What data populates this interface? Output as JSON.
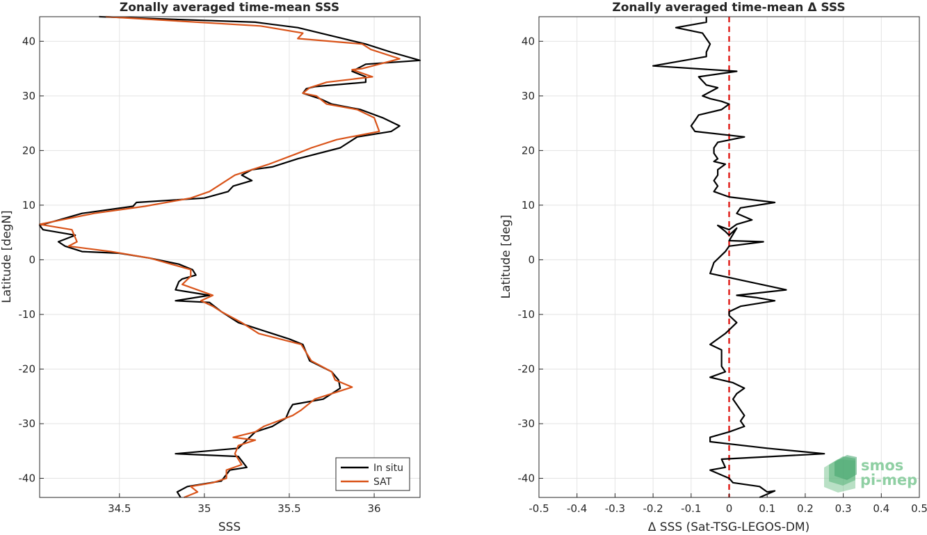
{
  "chart_data": [
    {
      "type": "line",
      "title": "Zonally averaged time-mean SSS",
      "xlabel": "SSS",
      "ylabel": "Latitude [degN]",
      "xlim": [
        34.03,
        36.27
      ],
      "ylim": [
        -43.5,
        44.5
      ],
      "xticks": [
        34.5,
        35,
        35.5,
        36
      ],
      "xtick_labels": [
        "34.5",
        "35",
        "35.5",
        "36"
      ],
      "yticks": [
        -40,
        -30,
        -20,
        -10,
        0,
        10,
        20,
        30,
        40
      ],
      "ytick_labels": [
        "-40",
        "-30",
        "-20",
        "-10",
        "0",
        "10",
        "20",
        "30",
        "40"
      ],
      "grid": true,
      "legend_position": "bottom-right",
      "series": [
        {
          "name": "In situ",
          "color": "#000000",
          "points": [
            [
              34.38,
              44.5
            ],
            [
              35.3,
              43.5
            ],
            [
              35.55,
              42.5
            ],
            [
              35.95,
              39.5
            ],
            [
              36.1,
              38
            ],
            [
              36.27,
              36.5
            ],
            [
              35.95,
              35.8
            ],
            [
              35.87,
              34.5
            ],
            [
              35.95,
              33.5
            ],
            [
              35.95,
              32.5
            ],
            [
              35.65,
              31.7
            ],
            [
              35.6,
              31.3
            ],
            [
              35.58,
              30.5
            ],
            [
              35.68,
              29.5
            ],
            [
              35.75,
              28.5
            ],
            [
              35.92,
              27.5
            ],
            [
              36.05,
              26
            ],
            [
              36.15,
              24.5
            ],
            [
              36.1,
              23.5
            ],
            [
              35.9,
              22.5
            ],
            [
              35.8,
              20.5
            ],
            [
              35.55,
              18.5
            ],
            [
              35.4,
              17
            ],
            [
              35.28,
              16.5
            ],
            [
              35.22,
              15.5
            ],
            [
              35.28,
              14.5
            ],
            [
              35.17,
              13.5
            ],
            [
              35.14,
              12.5
            ],
            [
              35,
              11.3
            ],
            [
              34.6,
              10.5
            ],
            [
              34.58,
              9.8
            ],
            [
              34.28,
              8.5
            ],
            [
              34.03,
              6.3
            ],
            [
              34.05,
              5.5
            ],
            [
              34.24,
              4.5
            ],
            [
              34.14,
              3.3
            ],
            [
              34.18,
              2.5
            ],
            [
              34.28,
              1.5
            ],
            [
              34.5,
              1.2
            ],
            [
              34.68,
              0.3
            ],
            [
              34.85,
              -0.8
            ],
            [
              34.93,
              -1.8
            ],
            [
              34.95,
              -2.8
            ],
            [
              34.87,
              -3.5
            ],
            [
              34.85,
              -4
            ],
            [
              34.83,
              -5.5
            ],
            [
              35.03,
              -6.5
            ],
            [
              34.83,
              -7.5
            ],
            [
              35.03,
              -7.8
            ],
            [
              35.1,
              -9.5
            ],
            [
              35.2,
              -11.5
            ],
            [
              35.3,
              -12.5
            ],
            [
              35.5,
              -14.5
            ],
            [
              35.58,
              -15.5
            ],
            [
              35.6,
              -17
            ],
            [
              35.62,
              -18.5
            ],
            [
              35.75,
              -20.5
            ],
            [
              35.79,
              -22
            ],
            [
              35.8,
              -23.5
            ],
            [
              35.7,
              -25.5
            ],
            [
              35.52,
              -26.5
            ],
            [
              35.5,
              -27.5
            ],
            [
              35.48,
              -29
            ],
            [
              35.4,
              -30.5
            ],
            [
              35.3,
              -31.5
            ],
            [
              35.25,
              -33
            ],
            [
              35.2,
              -34.5
            ],
            [
              34.83,
              -35.5
            ],
            [
              35.2,
              -36
            ],
            [
              35.25,
              -38
            ],
            [
              35.15,
              -38.5
            ],
            [
              35.1,
              -40.5
            ],
            [
              34.9,
              -41.5
            ],
            [
              34.84,
              -42.5
            ],
            [
              34.86,
              -43.5
            ]
          ]
        },
        {
          "name": "SAT",
          "color": "#d95319",
          "points": [
            [
              34.42,
              44.5
            ],
            [
              35.33,
              42.8
            ],
            [
              35.58,
              41.5
            ],
            [
              35.55,
              40.5
            ],
            [
              35.93,
              39.5
            ],
            [
              35.98,
              38.5
            ],
            [
              36.15,
              36.8
            ],
            [
              35.93,
              35
            ],
            [
              35.87,
              34.8
            ],
            [
              35.99,
              33.5
            ],
            [
              35.72,
              32.5
            ],
            [
              35.62,
              31.5
            ],
            [
              35.58,
              30.5
            ],
            [
              35.66,
              30
            ],
            [
              35.72,
              28.5
            ],
            [
              35.9,
              27.5
            ],
            [
              36,
              26
            ],
            [
              36.03,
              23.5
            ],
            [
              35.78,
              22
            ],
            [
              35.63,
              20.5
            ],
            [
              35.55,
              19.5
            ],
            [
              35.38,
              17.5
            ],
            [
              35.18,
              15.5
            ],
            [
              35.08,
              13.5
            ],
            [
              35.03,
              12.5
            ],
            [
              34.92,
              11.3
            ],
            [
              34.65,
              9.8
            ],
            [
              34.35,
              8.5
            ],
            [
              34.03,
              6.5
            ],
            [
              34.22,
              5.5
            ],
            [
              34.25,
              3.3
            ],
            [
              34.2,
              2.5
            ],
            [
              34.45,
              1.5
            ],
            [
              34.68,
              0.3
            ],
            [
              34.92,
              -1.8
            ],
            [
              34.92,
              -3
            ],
            [
              34.87,
              -4.5
            ],
            [
              35.05,
              -6.5
            ],
            [
              34.98,
              -7.5
            ],
            [
              35.05,
              -8.5
            ],
            [
              35.1,
              -9.5
            ],
            [
              35.22,
              -11.5
            ],
            [
              35.32,
              -13.5
            ],
            [
              35.57,
              -15.5
            ],
            [
              35.63,
              -18.5
            ],
            [
              35.75,
              -20.5
            ],
            [
              35.77,
              -22
            ],
            [
              35.87,
              -23.3
            ],
            [
              35.65,
              -25.5
            ],
            [
              35.57,
              -27.5
            ],
            [
              35.52,
              -28.5
            ],
            [
              35.35,
              -30.5
            ],
            [
              35.3,
              -31.5
            ],
            [
              35.17,
              -32.5
            ],
            [
              35.3,
              -33
            ],
            [
              35.2,
              -34
            ],
            [
              35.18,
              -35.5
            ],
            [
              35.22,
              -37.5
            ],
            [
              35.13,
              -38.5
            ],
            [
              35.13,
              -40
            ],
            [
              35.05,
              -40.8
            ],
            [
              34.92,
              -41.5
            ],
            [
              34.96,
              -42.5
            ],
            [
              34.88,
              -43.5
            ]
          ]
        }
      ]
    },
    {
      "type": "line",
      "title": "Zonally averaged time-mean Δ SSS",
      "xlabel": "Δ SSS (Sat-TSG-LEGOS-DM)",
      "ylabel": "Latitude [deg]",
      "xlim": [
        -0.5,
        0.5
      ],
      "ylim": [
        -43.5,
        44.5
      ],
      "xticks": [
        -0.5,
        -0.4,
        -0.3,
        -0.2,
        -0.1,
        0,
        0.1,
        0.2,
        0.3,
        0.4,
        0.5
      ],
      "xtick_labels": [
        "-0.5",
        "-0.4",
        "-0.3",
        "-0.2",
        "-0.1",
        "0",
        "0.1",
        "0.2",
        "0.3",
        "0.4",
        "0.5"
      ],
      "yticks": [
        -40,
        -30,
        -20,
        -10,
        0,
        10,
        20,
        30,
        40
      ],
      "ytick_labels": [
        "-40",
        "-30",
        "-20",
        "-10",
        "0",
        "10",
        "20",
        "30",
        "40"
      ],
      "grid": true,
      "reference_line": {
        "x": 0,
        "color": "#e0201c",
        "style": "dashed"
      },
      "series": [
        {
          "color": "#000000",
          "points": [
            [
              -0.06,
              44.5
            ],
            [
              -0.06,
              43.5
            ],
            [
              -0.14,
              42.5
            ],
            [
              -0.07,
              41.5
            ],
            [
              -0.05,
              39.5
            ],
            [
              -0.06,
              38
            ],
            [
              -0.06,
              37.2
            ],
            [
              -0.2,
              35.5
            ],
            [
              0.02,
              34.5
            ],
            [
              -0.08,
              33.5
            ],
            [
              -0.06,
              32
            ],
            [
              -0.03,
              31.5
            ],
            [
              -0.07,
              30
            ],
            [
              -0.05,
              29.5
            ],
            [
              -0.02,
              29
            ],
            [
              0,
              28.5
            ],
            [
              -0.02,
              27.5
            ],
            [
              -0.08,
              26.5
            ],
            [
              -0.09,
              25.5
            ],
            [
              -0.1,
              24.5
            ],
            [
              -0.09,
              23.5
            ],
            [
              0.04,
              22.5
            ],
            [
              -0.03,
              21.5
            ],
            [
              -0.04,
              20.5
            ],
            [
              -0.04,
              19.5
            ],
            [
              -0.03,
              18.5
            ],
            [
              -0.04,
              18
            ],
            [
              -0.01,
              17.5
            ],
            [
              -0.03,
              16.5
            ],
            [
              -0.03,
              15.5
            ],
            [
              -0.04,
              14.5
            ],
            [
              -0.03,
              13.5
            ],
            [
              -0.04,
              12.5
            ],
            [
              0,
              11.5
            ],
            [
              0.12,
              10.5
            ],
            [
              0.03,
              9.5
            ],
            [
              0.02,
              8.5
            ],
            [
              0.06,
              7.3
            ],
            [
              0.02,
              6.5
            ],
            [
              0,
              5.5
            ],
            [
              -0.03,
              6.3
            ],
            [
              -0.01,
              5.2
            ],
            [
              0,
              4.5
            ],
            [
              0.02,
              5.8
            ],
            [
              0,
              3.5
            ],
            [
              0.09,
              3.3
            ],
            [
              0,
              2.5
            ],
            [
              -0.01,
              1.5
            ],
            [
              -0.04,
              -0.5
            ],
            [
              -0.05,
              -2.5
            ],
            [
              0.15,
              -5.5
            ],
            [
              0.02,
              -6.5
            ],
            [
              0.07,
              -6.9
            ],
            [
              0.12,
              -7.5
            ],
            [
              0.03,
              -8.5
            ],
            [
              0,
              -9.5
            ],
            [
              0,
              -10.2
            ],
            [
              0.02,
              -11.5
            ],
            [
              -0.01,
              -13.5
            ],
            [
              -0.05,
              -15.5
            ],
            [
              -0.02,
              -16.5
            ],
            [
              -0.02,
              -19.5
            ],
            [
              -0.01,
              -20.5
            ],
            [
              -0.05,
              -21.5
            ],
            [
              0.01,
              -22.5
            ],
            [
              0.04,
              -23.5
            ],
            [
              0.02,
              -24.5
            ],
            [
              0.01,
              -25.5
            ],
            [
              0.02,
              -26.5
            ],
            [
              0.03,
              -27.5
            ],
            [
              0.04,
              -28.5
            ],
            [
              0.03,
              -29.5
            ],
            [
              0.04,
              -30.5
            ],
            [
              0,
              -31.5
            ],
            [
              -0.05,
              -32.5
            ],
            [
              -0.05,
              -33.3
            ],
            [
              0.1,
              -34.5
            ],
            [
              0.25,
              -35.5
            ],
            [
              -0.02,
              -36.5
            ],
            [
              -0.01,
              -38
            ],
            [
              -0.05,
              -38.5
            ],
            [
              0,
              -40
            ],
            [
              0.01,
              -40.8
            ],
            [
              0.08,
              -41.5
            ],
            [
              0.1,
              -42.5
            ],
            [
              0.12,
              -42.3
            ],
            [
              0.08,
              -43.5
            ]
          ]
        }
      ]
    }
  ],
  "legend": {
    "entries": [
      "In situ",
      "SAT"
    ]
  },
  "logo": {
    "line1": "smos",
    "line2": "pi-mep",
    "color": "#8fcfa3"
  }
}
